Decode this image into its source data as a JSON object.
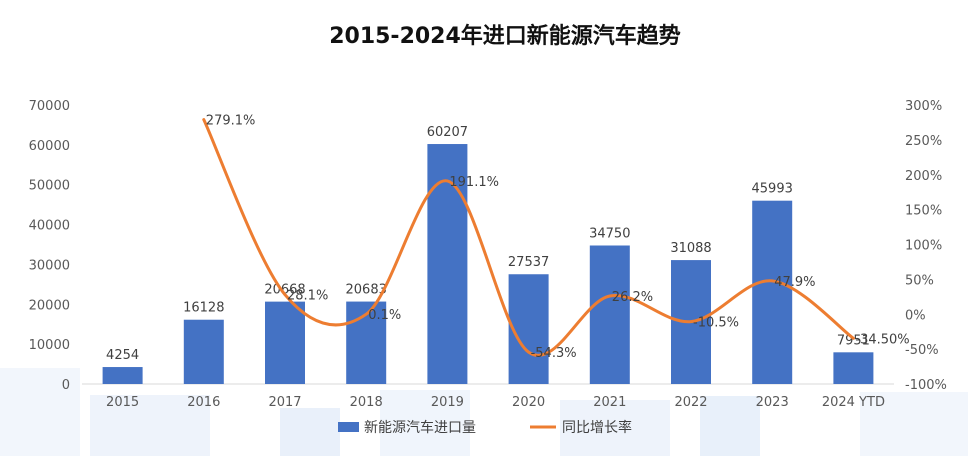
{
  "chart_data": {
    "type": "bar",
    "title": "2015-2024年进口新能源汽车趋势",
    "categories": [
      "2015",
      "2016",
      "2017",
      "2018",
      "2019",
      "2020",
      "2021",
      "2022",
      "2023",
      "2024 YTD"
    ],
    "series": [
      {
        "name": "新能源汽车进口量",
        "type": "bar",
        "axis": "left",
        "values": [
          4254,
          16128,
          20668,
          20683,
          60207,
          27537,
          34750,
          31088,
          45993,
          7951
        ],
        "labels": [
          "4254",
          "16128",
          "20668",
          "20683",
          "60207",
          "27537",
          "34750",
          "31088",
          "45993",
          "7951"
        ]
      },
      {
        "name": "同比增长率",
        "type": "line",
        "smooth": true,
        "axis": "right",
        "values": [
          null,
          279.1,
          28.1,
          0.1,
          191.1,
          -54.3,
          26.2,
          -10.5,
          47.9,
          -34.5
        ],
        "labels": [
          null,
          "279.1%",
          "28.1%",
          "0.1%",
          "191.1%",
          "-54.3%",
          "26.2%",
          "-10.5%",
          "47.9%",
          "-34.50%"
        ]
      }
    ],
    "y_left": {
      "min": 0,
      "max": 70000,
      "step": 10000,
      "ticks": [
        "0",
        "10000",
        "20000",
        "30000",
        "40000",
        "50000",
        "60000",
        "70000"
      ]
    },
    "y_right": {
      "min": -100,
      "max": 300,
      "step": 50,
      "ticks": [
        "-100%",
        "-50%",
        "0%",
        "50%",
        "100%",
        "150%",
        "200%",
        "250%",
        "300%"
      ]
    },
    "grid": false,
    "legend_position": "bottom",
    "colors": {
      "bar": "#4472C4",
      "line": "#ED7D31"
    }
  }
}
